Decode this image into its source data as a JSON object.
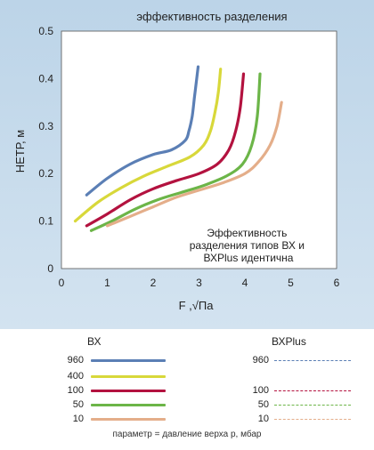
{
  "chart_data": {
    "type": "line",
    "title": "эффективность разделения",
    "xlabel": "F ,√Па",
    "ylabel": "НЕТР, м",
    "xlim": [
      0,
      6
    ],
    "ylim": [
      0,
      0.5
    ],
    "xticks": [
      "0",
      "1",
      "2",
      "3",
      "4",
      "5",
      "6"
    ],
    "yticks": [
      "0",
      "0.1",
      "0.2",
      "0.3",
      "0.4",
      "0.5"
    ],
    "grid": false,
    "annotation": "Эффективность разделения типов ВХ и ВХPlus идентична",
    "series": [
      {
        "name": "960",
        "color": "#5b7fb5",
        "x": [
          0.55,
          1.0,
          1.5,
          2.0,
          2.4,
          2.7,
          2.78,
          2.85,
          2.9,
          2.95,
          2.98
        ],
        "y": [
          0.155,
          0.19,
          0.22,
          0.24,
          0.25,
          0.27,
          0.29,
          0.32,
          0.36,
          0.4,
          0.425
        ]
      },
      {
        "name": "400",
        "color": "#d8d83a",
        "x": [
          0.3,
          0.8,
          1.3,
          1.8,
          2.3,
          2.8,
          3.1,
          3.25,
          3.35,
          3.42,
          3.47
        ],
        "y": [
          0.1,
          0.14,
          0.17,
          0.195,
          0.215,
          0.235,
          0.26,
          0.29,
          0.33,
          0.37,
          0.42
        ]
      },
      {
        "name": "100",
        "color": "#b3123f",
        "x": [
          0.55,
          1.0,
          1.5,
          2.0,
          2.5,
          3.0,
          3.4,
          3.65,
          3.8,
          3.9,
          3.97
        ],
        "y": [
          0.09,
          0.115,
          0.145,
          0.168,
          0.185,
          0.2,
          0.22,
          0.25,
          0.29,
          0.34,
          0.41
        ]
      },
      {
        "name": "50",
        "color": "#6cb548",
        "x": [
          0.65,
          1.1,
          1.6,
          2.1,
          2.6,
          3.1,
          3.6,
          3.95,
          4.15,
          4.27,
          4.33
        ],
        "y": [
          0.08,
          0.1,
          0.125,
          0.145,
          0.16,
          0.175,
          0.195,
          0.22,
          0.26,
          0.32,
          0.41
        ]
      },
      {
        "name": "10",
        "color": "#e4ae8a",
        "x": [
          1.0,
          1.5,
          2.0,
          2.5,
          3.0,
          3.5,
          4.0,
          4.3,
          4.55,
          4.7,
          4.8
        ],
        "y": [
          0.09,
          0.11,
          0.13,
          0.15,
          0.165,
          0.18,
          0.2,
          0.225,
          0.26,
          0.3,
          0.35
        ]
      }
    ]
  },
  "legend": {
    "title_bx": "ВХ",
    "title_bxplus": "ВХPlus",
    "values": [
      "960",
      "400",
      "100",
      "50",
      "10"
    ],
    "bxplus_values": [
      "960",
      "100",
      "50",
      "10"
    ],
    "note": "параметр = давление верха р, мбар"
  }
}
